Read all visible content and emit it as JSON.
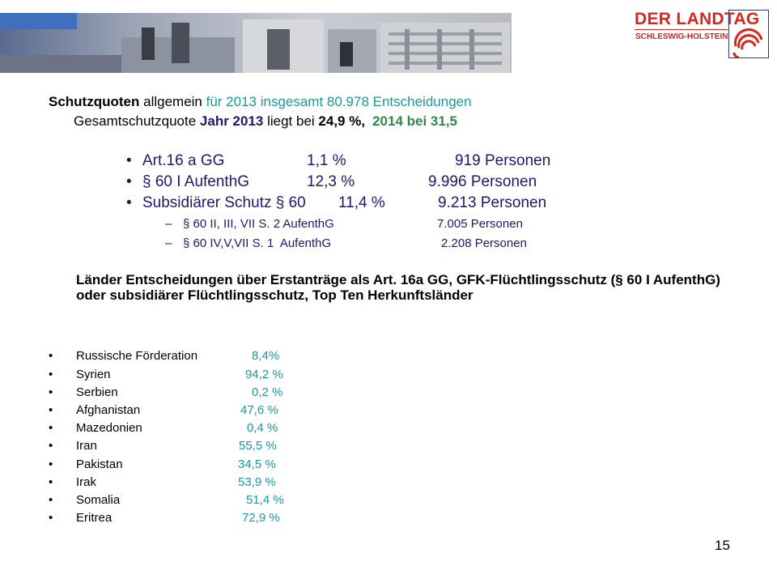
{
  "header": {
    "logo_title": "DER LANDTAG",
    "logo_subtitle": "SCHLESWIG-HOLSTEIN"
  },
  "headline": {
    "line1_bold": "Schutzquoten",
    "line1_mid": " allgemein ",
    "line1_colored": "für 2013 insgesamt 80.978 Entscheidungen",
    "line2_pre": "Gesamtschutzquote ",
    "line2_year": "Jahr 2013",
    "line2_mid": " liegt bei ",
    "line2_value": "24,9 %,",
    "line2_post": "2014 bei 31,5"
  },
  "quotas": [
    {
      "label": "Art.16 a GG",
      "percent": "1,1 %",
      "persons": "919 Personen"
    },
    {
      "label": "§ 60 I AufenthG",
      "percent": "12,3 %",
      "persons": "9.996 Personen"
    },
    {
      "label": "Subsidiärer Schutz § 60",
      "percent": "11,4 %",
      "persons": "9.213 Personen"
    }
  ],
  "sub_quotas": [
    {
      "label": "§ 60 II, III, VII S. 2 AufenthG",
      "persons": "7.005 Personen"
    },
    {
      "label": "§ 60 IV,V,VII S. 1  AufenthG",
      "persons": "2.208 Personen"
    }
  ],
  "countries_heading": "Länder Entscheidungen über Erstanträge als Art. 16a GG, GFK-Flüchtlingsschutz (§ 60 I AufenthG) oder subsidiärer Flüchtlingsschutz, Top Ten Herkunftsländer",
  "countries": [
    {
      "name": "Russische Förderation",
      "value": "8,4%"
    },
    {
      "name": "Syrien",
      "value": "94,2 %"
    },
    {
      "name": "Serbien",
      "value": "0,2 %"
    },
    {
      "name": "Afghanistan",
      "value": "47,6 %"
    },
    {
      "name": "Mazedonien",
      "value": "0,4 %"
    },
    {
      "name": "Iran",
      "value": "55,5 %"
    },
    {
      "name": "Pakistan",
      "value": "34,5 %"
    },
    {
      "name": "Irak",
      "value": "53,9 %"
    },
    {
      "name": "Somalia",
      "value": "51,4 %"
    },
    {
      "name": "Eritrea",
      "value": "72,9 %"
    }
  ],
  "bullet_glyph": "•",
  "dash_glyph": "–",
  "page_number": "15",
  "colors": {
    "accent_teal": "#1c9a9a",
    "navy": "#1a1a6e",
    "logo_red": "#d9251c",
    "green": "#2f8a4a"
  }
}
